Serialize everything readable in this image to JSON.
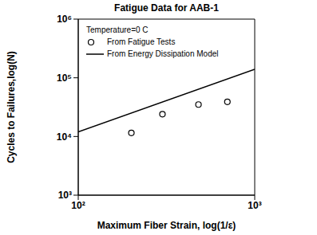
{
  "chart_data": {
    "type": "scatter",
    "title": "Fatigue Data for AAB-1",
    "x_label": "Maximum Fiber Strain, log(1/ε)",
    "y_label": "Cycles to Failures,log(N)",
    "annotations": [
      "Temperature=0 C"
    ],
    "log": true,
    "grid": false,
    "legend": "upper left",
    "xlim": [
      100,
      1000
    ],
    "ylim": [
      1000,
      1000000
    ],
    "xticks": [
      {
        "value": 100,
        "label": "10²"
      },
      {
        "value": 1000,
        "label": "10³"
      }
    ],
    "yticks": [
      {
        "value": 1000,
        "label": "10³"
      },
      {
        "value": 10000,
        "label": "10⁴"
      },
      {
        "value": 100000,
        "label": "10⁵"
      },
      {
        "value": 1000000,
        "label": "10⁶"
      }
    ],
    "series": [
      {
        "name": "From Fatigue Tests",
        "type": "scatter",
        "marker": "circle",
        "color": "#000000",
        "x": [
          200,
          300,
          480,
          700
        ],
        "values": [
          11500,
          24000,
          35000,
          39000
        ]
      },
      {
        "name": "From Energy Dissipation Model",
        "type": "line",
        "line_style": "solid",
        "color": "#000000",
        "x": [
          100,
          1000
        ],
        "values": [
          12000,
          140000
        ]
      }
    ]
  }
}
